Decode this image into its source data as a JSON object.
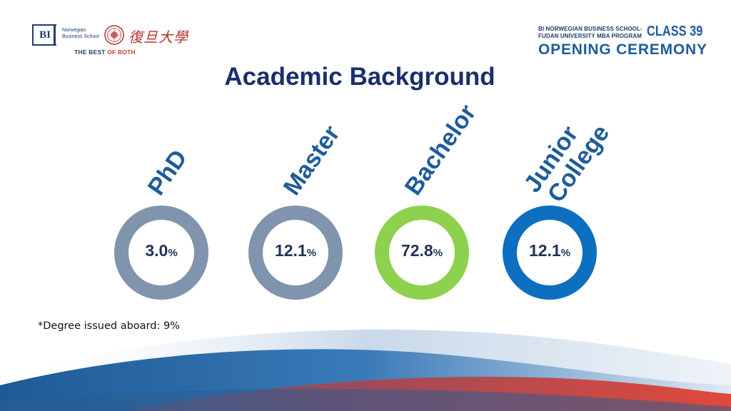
{
  "header": {
    "bi_logo_text": "BI",
    "bi_name_line1": "Norwegian",
    "bi_name_line2": "Business School",
    "fudan_script": "復旦大學",
    "tagline_prefix": "THE BEST ",
    "tagline_suffix": "OF BOTH",
    "program_line1": "BI NORWEGIAN BUSINESS SCHOOL-",
    "program_line2": "FUDAN UNIVERSITY MBA PROGRAM",
    "class_label": "CLASS 39",
    "event_label": "OPENING CEREMONY"
  },
  "title": "Academic Background",
  "degrees": [
    {
      "label": "PhD",
      "value": "3.0",
      "unit": "%",
      "color": "#8094ad"
    },
    {
      "label": "Master",
      "value": "12.1",
      "unit": "%",
      "color": "#8094ad"
    },
    {
      "label": "Bachelor",
      "value": "72.8",
      "unit": "%",
      "color": "#8dd14f"
    },
    {
      "label_line1": "Junior",
      "label_line2": "College",
      "value": "12.1",
      "unit": "%",
      "color": "#0c6fc0"
    }
  ],
  "footnote": "*Degree issued aboard: 9%",
  "colors": {
    "title": "#1a2f6b",
    "label": "#1f5c9a",
    "accent_red": "#c73a2e"
  }
}
